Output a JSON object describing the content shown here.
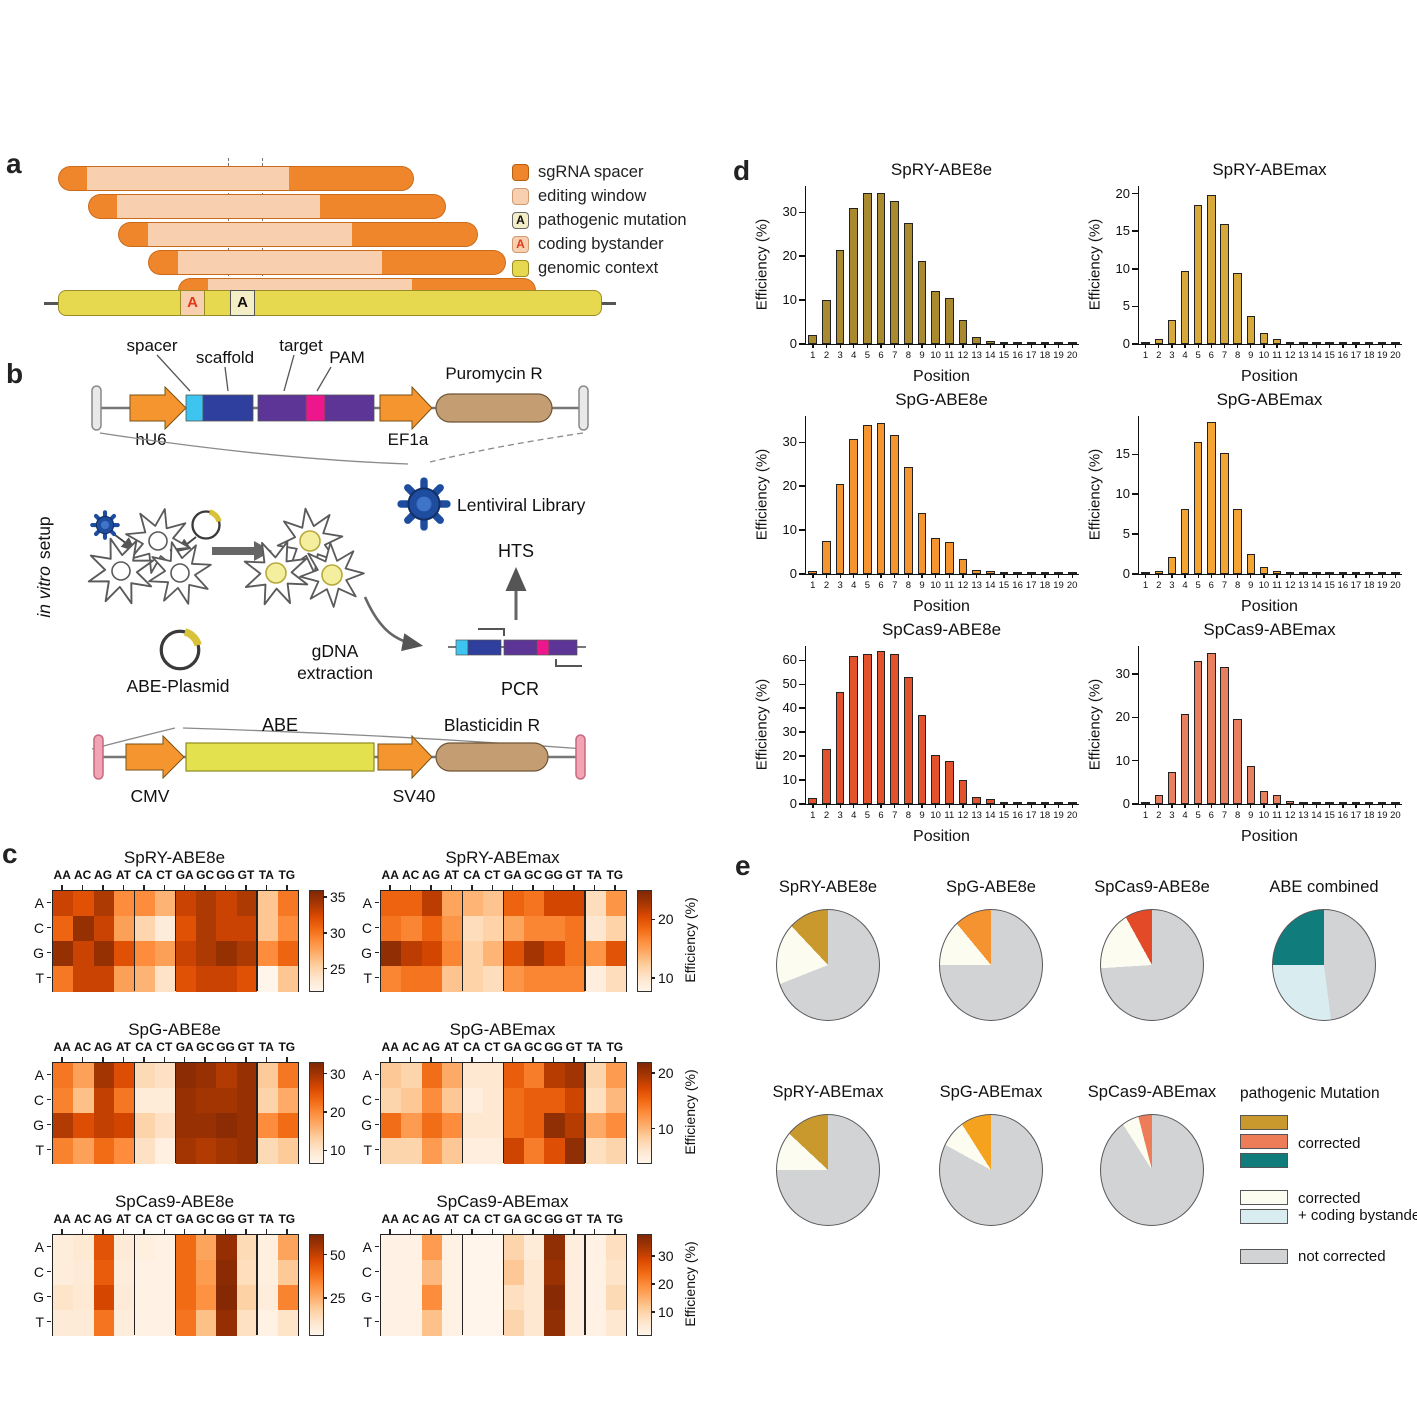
{
  "labels": {
    "a": "a",
    "b": "b",
    "c": "c",
    "d": "d",
    "e": "e"
  },
  "colors": {
    "spacer_orange": "#f0862c",
    "editing_peach": "#f8d0b0",
    "genomic_yellow": "#e6d84f",
    "mutation_box_bg": "#f4eec6",
    "red_letter": "#e0391c",
    "tan_capsule": "#c59d72",
    "pink_pill": "#f2a3b4",
    "cyan_block": "#3bc5f0",
    "dark_blue_block": "#2f3f9d",
    "purple_block": "#5c3596",
    "magenta_block": "#ee168c",
    "abe_yellow": "#e4e14e",
    "virus_blue": "#1e4da0"
  },
  "panel_a": {
    "pathogenic_letter": "A",
    "bystander_letter": "A",
    "legend": [
      {
        "label": "sgRNA spacer"
      },
      {
        "label": "editing window"
      },
      {
        "label": "pathogenic mutation",
        "letter": "A"
      },
      {
        "label": "coding bystander",
        "letter": "A"
      },
      {
        "label": "genomic context"
      }
    ]
  },
  "panel_b": {
    "setup_italic": "in vitro",
    "setup_rest": "setup",
    "spacer": "spacer",
    "scaffold": "scaffold",
    "target": "target",
    "pam": "PAM",
    "hu6": "hU6",
    "ef1a": "EF1a",
    "puromycin": "Puromycin R",
    "lentiviral": "Lentiviral Library",
    "hts": "HTS",
    "gdna_line1": "gDNA",
    "gdna_line2": "extraction",
    "pcr": "PCR",
    "abe_plasmid": "ABE-Plasmid",
    "cmv": "CMV",
    "abe": "ABE",
    "sv40": "SV40",
    "blasticidin": "Blasticidin R"
  },
  "chart_data": {
    "heatmaps": [
      {
        "type": "heatmap",
        "title": "SpRY-ABE8e",
        "columns": [
          "AA",
          "AC",
          "AG",
          "AT",
          "CA",
          "CT",
          "GA",
          "GC",
          "GG",
          "GT",
          "TA",
          "TG"
        ],
        "rows": [
          "A",
          "C",
          "G",
          "T"
        ],
        "values": [
          [
            33,
            32,
            34,
            29,
            29,
            27,
            33,
            34,
            33,
            34,
            26,
            30
          ],
          [
            31,
            35,
            33,
            28,
            25,
            23,
            32,
            34,
            33,
            33,
            26,
            29
          ],
          [
            35,
            33,
            35,
            32,
            29,
            28,
            33,
            34,
            35,
            34,
            29,
            31
          ],
          [
            30,
            33,
            33,
            28,
            27,
            24,
            32,
            33,
            33,
            32,
            22,
            26
          ]
        ],
        "vmin": 22,
        "vmax": 36,
        "colorbar_ticks": [
          25,
          30,
          35
        ],
        "colorbar_label": ""
      },
      {
        "type": "heatmap",
        "title": "SpRY-ABEmax",
        "columns": [
          "AA",
          "AC",
          "AG",
          "AT",
          "CA",
          "CT",
          "GA",
          "GC",
          "GG",
          "GT",
          "TA",
          "TG"
        ],
        "rows": [
          "A",
          "C",
          "G",
          "T"
        ],
        "values": [
          [
            19,
            19,
            22,
            15,
            14,
            13,
            19,
            18,
            21,
            21,
            11,
            16
          ],
          [
            18,
            17,
            19,
            16,
            11,
            12,
            15,
            17,
            17,
            18,
            10,
            12
          ],
          [
            24,
            22,
            21,
            17,
            12,
            14,
            20,
            23,
            21,
            18,
            16,
            20
          ],
          [
            17,
            18,
            18,
            13,
            12,
            11,
            16,
            17,
            17,
            17,
            9,
            11
          ]
        ],
        "vmin": 8,
        "vmax": 25,
        "colorbar_ticks": [
          10,
          20
        ],
        "colorbar_label": "Efficiency (%)"
      },
      {
        "type": "heatmap",
        "title": "SpG-ABE8e",
        "columns": [
          "AA",
          "AC",
          "AG",
          "AT",
          "CA",
          "CT",
          "GA",
          "GC",
          "GG",
          "GT",
          "TA",
          "TG"
        ],
        "rows": [
          "A",
          "C",
          "G",
          "T"
        ],
        "values": [
          [
            22,
            18,
            30,
            26,
            12,
            11,
            32,
            31,
            29,
            31,
            14,
            22
          ],
          [
            21,
            15,
            28,
            22,
            9,
            9,
            31,
            30,
            30,
            31,
            13,
            17
          ],
          [
            29,
            26,
            28,
            27,
            13,
            11,
            31,
            31,
            32,
            31,
            20,
            23
          ],
          [
            21,
            18,
            23,
            20,
            11,
            8,
            30,
            29,
            30,
            31,
            12,
            14
          ]
        ],
        "vmin": 7,
        "vmax": 33,
        "colorbar_ticks": [
          10,
          20,
          30
        ],
        "colorbar_label": ""
      },
      {
        "type": "heatmap",
        "title": "SpG-ABEmax",
        "columns": [
          "AA",
          "AC",
          "AG",
          "AT",
          "CA",
          "CT",
          "GA",
          "GC",
          "GG",
          "GT",
          "TA",
          "TG"
        ],
        "rows": [
          "A",
          "C",
          "G",
          "T"
        ],
        "values": [
          [
            9,
            8,
            15,
            11,
            6,
            6,
            16,
            14,
            19,
            20,
            8,
            12
          ],
          [
            8,
            9,
            13,
            9,
            5,
            6,
            15,
            16,
            16,
            18,
            7,
            10
          ],
          [
            15,
            12,
            15,
            13,
            6,
            6,
            15,
            16,
            21,
            19,
            11,
            13
          ],
          [
            8,
            8,
            12,
            9,
            5,
            5,
            18,
            14,
            17,
            21,
            7,
            8
          ]
        ],
        "vmin": 4,
        "vmax": 22,
        "colorbar_ticks": [
          10,
          20
        ],
        "colorbar_label": "Efficiency (%)"
      },
      {
        "type": "heatmap",
        "title": "SpCas9-ABE8e",
        "columns": [
          "AA",
          "AC",
          "AG",
          "AT",
          "CA",
          "CT",
          "GA",
          "GC",
          "GG",
          "GT",
          "TA",
          "TG"
        ],
        "rows": [
          "A",
          "C",
          "G",
          "T"
        ],
        "values": [
          [
            8,
            10,
            45,
            9,
            7,
            6,
            40,
            28,
            58,
            15,
            7,
            28
          ],
          [
            8,
            9,
            43,
            8,
            6,
            6,
            40,
            30,
            60,
            14,
            7,
            20
          ],
          [
            12,
            10,
            48,
            9,
            6,
            6,
            40,
            32,
            61,
            18,
            8,
            35
          ],
          [
            9,
            9,
            38,
            8,
            6,
            6,
            38,
            22,
            58,
            13,
            6,
            12
          ]
        ],
        "vmin": 4,
        "vmax": 62,
        "colorbar_ticks": [
          25,
          50
        ],
        "colorbar_label": ""
      },
      {
        "type": "heatmap",
        "title": "SpCas9-ABEmax",
        "columns": [
          "AA",
          "AC",
          "AG",
          "AT",
          "CA",
          "CT",
          "GA",
          "GC",
          "GG",
          "GT",
          "TA",
          "TG"
        ],
        "rows": [
          "A",
          "C",
          "G",
          "T"
        ],
        "values": [
          [
            3,
            3,
            18,
            3,
            2,
            2,
            10,
            5,
            36,
            4,
            3,
            8
          ],
          [
            3,
            3,
            14,
            3,
            2,
            2,
            12,
            6,
            35,
            4,
            3,
            7
          ],
          [
            3,
            3,
            20,
            3,
            2,
            2,
            8,
            6,
            37,
            4,
            3,
            9
          ],
          [
            3,
            3,
            13,
            3,
            2,
            2,
            10,
            6,
            36,
            4,
            3,
            6
          ]
        ],
        "vmin": 2,
        "vmax": 38,
        "colorbar_ticks": [
          10,
          20,
          30
        ],
        "colorbar_label": "Efficiency (%)"
      }
    ],
    "bar_charts": [
      {
        "type": "bar",
        "title": "SpRY-ABE8e",
        "xlabel": "Position",
        "ylabel": "Efficiency (%)",
        "x": [
          1,
          2,
          3,
          4,
          5,
          6,
          7,
          8,
          9,
          10,
          11,
          12,
          13,
          14,
          15,
          16,
          17,
          18,
          19,
          20
        ],
        "values": [
          2,
          10,
          21.5,
          31,
          34.5,
          34.5,
          32.5,
          27.5,
          19,
          12,
          10.5,
          5.5,
          1.5,
          0.7,
          0.4,
          0.3,
          0.2,
          0.2,
          0.1,
          0.1
        ],
        "ymax": 36,
        "yticks": [
          0,
          10,
          20,
          30
        ],
        "color": "#a98a2f"
      },
      {
        "type": "bar",
        "title": "SpRY-ABEmax",
        "xlabel": "Position",
        "ylabel": "Efficiency (%)",
        "x": [
          1,
          2,
          3,
          4,
          5,
          6,
          7,
          8,
          9,
          10,
          11,
          12,
          13,
          14,
          15,
          16,
          17,
          18,
          19,
          20
        ],
        "values": [
          0.1,
          0.7,
          3.2,
          9.7,
          18.5,
          19.8,
          16,
          9.5,
          3.7,
          1.5,
          0.7,
          0.2,
          0.1,
          0.1,
          0.1,
          0.1,
          0.1,
          0.1,
          0.1,
          0.1
        ],
        "ymax": 21,
        "yticks": [
          0,
          5,
          10,
          15,
          20
        ],
        "color": "#d7a93b"
      },
      {
        "type": "bar",
        "title": "SpG-ABE8e",
        "xlabel": "Position",
        "ylabel": "Efficiency (%)",
        "x": [
          1,
          2,
          3,
          4,
          5,
          6,
          7,
          8,
          9,
          10,
          11,
          12,
          13,
          14,
          15,
          16,
          17,
          18,
          19,
          20
        ],
        "values": [
          0.8,
          7.5,
          20.5,
          30.7,
          34,
          34.3,
          31.7,
          24.3,
          14,
          8.3,
          7.2,
          3.4,
          1,
          0.6,
          0.3,
          0.2,
          0.2,
          0.1,
          0.1,
          0.1
        ],
        "ymax": 36,
        "yticks": [
          0,
          10,
          20,
          30
        ],
        "color": "#f5952f"
      },
      {
        "type": "bar",
        "title": "SpG-ABEmax",
        "xlabel": "Position",
        "ylabel": "Efficiency (%)",
        "x": [
          1,
          2,
          3,
          4,
          5,
          6,
          7,
          8,
          9,
          10,
          11,
          12,
          13,
          14,
          15,
          16,
          17,
          18,
          19,
          20
        ],
        "values": [
          0.1,
          0.4,
          2.1,
          8.1,
          16.5,
          19,
          15.2,
          8.2,
          2.5,
          0.9,
          0.4,
          0.1,
          0.1,
          0.1,
          0.1,
          0.1,
          0.1,
          0.1,
          0.1,
          0.1
        ],
        "ymax": 19.8,
        "yticks": [
          0,
          5,
          10,
          15
        ],
        "color": "#f3a433"
      },
      {
        "type": "bar",
        "title": "SpCas9-ABE8e",
        "xlabel": "Position",
        "ylabel": "Efficiency (%)",
        "x": [
          1,
          2,
          3,
          4,
          5,
          6,
          7,
          8,
          9,
          10,
          11,
          12,
          13,
          14,
          15,
          16,
          17,
          18,
          19,
          20
        ],
        "values": [
          2.5,
          23,
          47,
          62,
          62.5,
          64,
          62.5,
          53,
          37,
          20.5,
          18,
          10,
          3,
          2.2,
          1,
          0.4,
          0.3,
          0.2,
          0.2,
          0.1
        ],
        "ymax": 66,
        "yticks": [
          0,
          10,
          20,
          30,
          40,
          50,
          60
        ],
        "color": "#e2522c"
      },
      {
        "type": "bar",
        "title": "SpCas9-ABEmax",
        "xlabel": "Position",
        "ylabel": "Efficiency (%)",
        "x": [
          1,
          2,
          3,
          4,
          5,
          6,
          7,
          8,
          9,
          10,
          11,
          12,
          13,
          14,
          15,
          16,
          17,
          18,
          19,
          20
        ],
        "values": [
          0.1,
          2,
          7.5,
          20.7,
          33,
          35,
          31.7,
          19.7,
          8.7,
          3.1,
          2,
          0.7,
          0.2,
          0.1,
          0.1,
          0.1,
          0.1,
          0.1,
          0.1,
          0.1
        ],
        "ymax": 36.5,
        "yticks": [
          0,
          10,
          20,
          30
        ],
        "color": "#e87f5e"
      }
    ],
    "pies": [
      {
        "type": "pie",
        "title": "SpRY-ABE8e",
        "slices": [
          {
            "name": "corrected",
            "pct": 12,
            "color": "#c9992e"
          },
          {
            "name": "corrected + coding bystander",
            "pct": 19,
            "color": "#fdfcf0"
          },
          {
            "name": "not corrected",
            "pct": 69,
            "color": "#d2d3d5"
          }
        ]
      },
      {
        "type": "pie",
        "title": "SpG-ABE8e",
        "slices": [
          {
            "name": "corrected",
            "pct": 11,
            "color": "#f59331"
          },
          {
            "name": "corrected + coding bystander",
            "pct": 14,
            "color": "#fdfcf0"
          },
          {
            "name": "not corrected",
            "pct": 75,
            "color": "#d2d3d5"
          }
        ]
      },
      {
        "type": "pie",
        "title": "SpCas9-ABE8e",
        "slices": [
          {
            "name": "corrected",
            "pct": 8,
            "color": "#e34b28"
          },
          {
            "name": "corrected + coding bystander",
            "pct": 18,
            "color": "#fdfcf0"
          },
          {
            "name": "not corrected",
            "pct": 74,
            "color": "#d2d3d5"
          }
        ]
      },
      {
        "type": "pie",
        "title": "ABE combined",
        "slices": [
          {
            "name": "corrected",
            "pct": 25,
            "color": "#107c7c"
          },
          {
            "name": "corrected + coding bystander",
            "pct": 27,
            "color": "#d9edf0"
          },
          {
            "name": "not corrected",
            "pct": 48,
            "color": "#d2d3d5"
          }
        ]
      },
      {
        "type": "pie",
        "title": "SpRY-ABEmax",
        "slices": [
          {
            "name": "corrected",
            "pct": 13,
            "color": "#c9992e"
          },
          {
            "name": "corrected + coding bystander",
            "pct": 12,
            "color": "#fdfcf0"
          },
          {
            "name": "not corrected",
            "pct": 75,
            "color": "#d2d3d5"
          }
        ]
      },
      {
        "type": "pie",
        "title": "SpG-ABEmax",
        "slices": [
          {
            "name": "corrected",
            "pct": 9,
            "color": "#f5a31f"
          },
          {
            "name": "corrected + coding bystander",
            "pct": 8,
            "color": "#fdfcf0"
          },
          {
            "name": "not corrected",
            "pct": 83,
            "color": "#d2d3d5"
          }
        ]
      },
      {
        "type": "pie",
        "title": "SpCas9-ABEmax",
        "slices": [
          {
            "name": "corrected",
            "pct": 4,
            "color": "#ed7c58"
          },
          {
            "name": "corrected + coding bystander",
            "pct": 5,
            "color": "#fdfcf0"
          },
          {
            "name": "not corrected",
            "pct": 91,
            "color": "#d2d3d5"
          }
        ]
      }
    ],
    "pie_legend": {
      "header": "pathogenic Mutation",
      "corrected_label": "corrected",
      "corrected_colors": [
        "#c9992e",
        "#ed7c58",
        "#107c7c"
      ],
      "bystander_line1": "corrected",
      "bystander_line2": "+ coding bystander",
      "bystander_colors": [
        "#fdfcf0",
        "#d9edf0"
      ],
      "not_corrected_label": "not corrected",
      "not_corrected_color": "#d2d3d5"
    }
  }
}
